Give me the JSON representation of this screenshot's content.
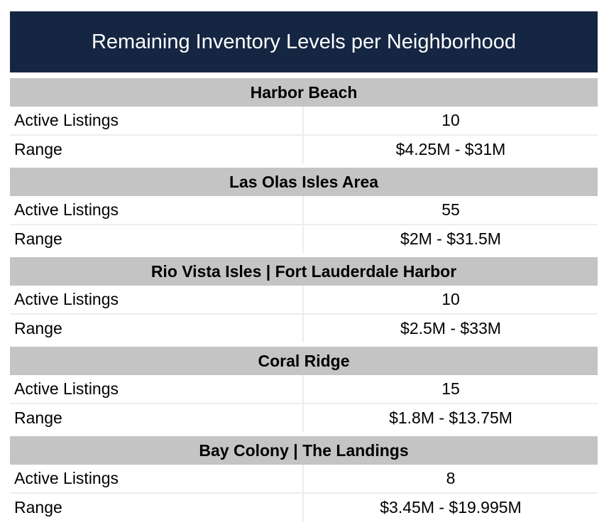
{
  "title": "Remaining Inventory Levels per Neighborhood",
  "colors": {
    "title_bg": "#152643",
    "section_bg": "#c4c4c4"
  },
  "sections": [
    {
      "name": "Harbor Beach",
      "rows": [
        {
          "label": "Active Listings",
          "value": "10"
        },
        {
          "label": "Range",
          "value": "$4.25M - $31M"
        }
      ]
    },
    {
      "name": "Las Olas Isles Area",
      "rows": [
        {
          "label": "Active Listings",
          "value": "55"
        },
        {
          "label": "Range",
          "value": "$2M - $31.5M"
        }
      ]
    },
    {
      "name": "Rio Vista Isles | Fort Lauderdale Harbor",
      "rows": [
        {
          "label": "Active Listings",
          "value": "10"
        },
        {
          "label": "Range",
          "value": "$2.5M - $33M"
        }
      ]
    },
    {
      "name": "Coral Ridge",
      "rows": [
        {
          "label": "Active Listings",
          "value": "15"
        },
        {
          "label": "Range",
          "value": "$1.8M - $13.75M"
        }
      ]
    },
    {
      "name": "Bay Colony | The Landings",
      "rows": [
        {
          "label": "Active Listings",
          "value": "8"
        },
        {
          "label": "Range",
          "value": "$3.45M - $19.995M"
        }
      ]
    }
  ]
}
